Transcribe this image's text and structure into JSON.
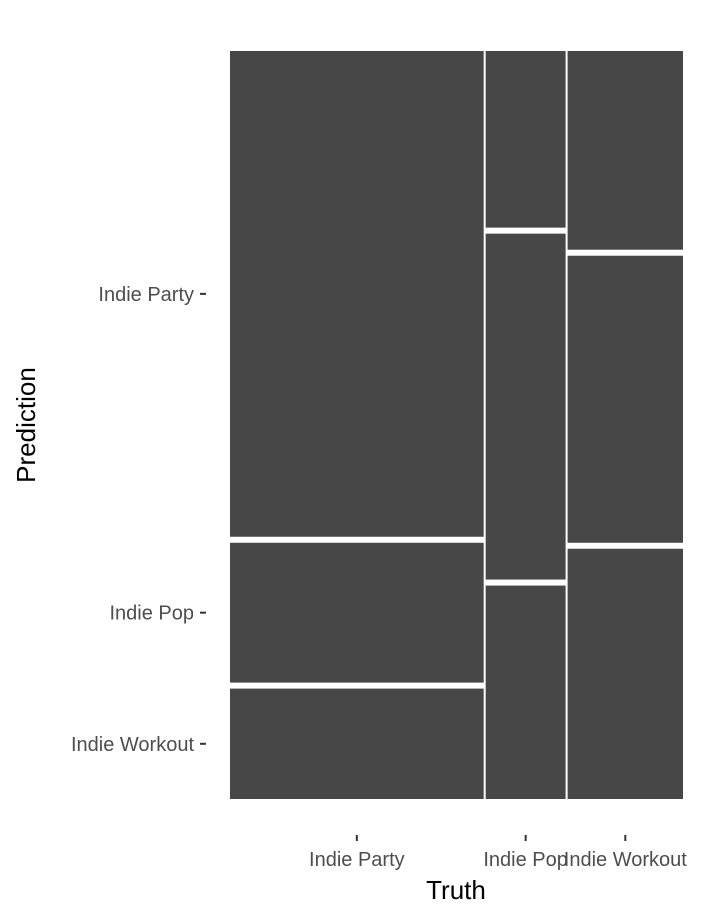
{
  "chart_data": {
    "type": "mosaic",
    "xlabel": "Truth",
    "ylabel": "Prediction",
    "x_categories": [
      "Indie Party",
      "Indie Pop",
      "Indie Workout"
    ],
    "y_categories": [
      "Indie Party",
      "Indie Pop",
      "Indie Workout"
    ],
    "column_proportions": [
      0.565,
      0.178,
      0.257
    ],
    "cell_proportions": [
      [
        0.66,
        0.19,
        0.15
      ],
      [
        0.24,
        0.47,
        0.29
      ],
      [
        0.27,
        0.39,
        0.34
      ]
    ],
    "fill_color": "#474747",
    "gap_color": "#ffffff",
    "tick_color": "#333333",
    "grid": false,
    "legend": "none"
  }
}
